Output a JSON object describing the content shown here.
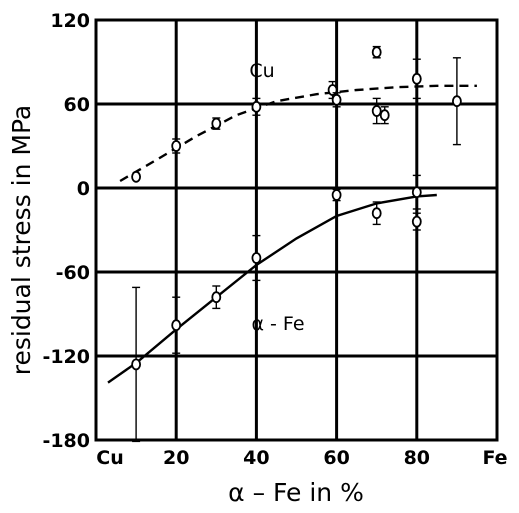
{
  "chart_data": {
    "type": "scatter",
    "xlabel": "α – Fe in %",
    "ylabel": "residual stress in MPa",
    "xlim": [
      0,
      100
    ],
    "ylim": [
      -180,
      120
    ],
    "x_ticks": [
      20,
      40,
      60,
      80
    ],
    "x_tick_labels": [
      "20",
      "40",
      "60",
      "80"
    ],
    "x_end_labels": {
      "left": "Cu",
      "right": "Fe"
    },
    "y_ticks": [
      120,
      60,
      0,
      -60,
      -120,
      -180
    ],
    "y_tick_labels": [
      "120",
      "60",
      "0",
      "-60",
      "-120",
      "-180"
    ],
    "grid": true,
    "series": [
      {
        "name": "Cu",
        "marker": "open-circle",
        "trend_style": "dashed",
        "points": [
          {
            "x": 10,
            "y": 8,
            "err": 0
          },
          {
            "x": 20,
            "y": 30,
            "err": 5
          },
          {
            "x": 30,
            "y": 46,
            "err": 4
          },
          {
            "x": 40,
            "y": 58,
            "err": 6
          },
          {
            "x": 59,
            "y": 70,
            "err": 6
          },
          {
            "x": 60,
            "y": 63,
            "err": 5
          },
          {
            "x": 70,
            "y": 97,
            "err": 4
          },
          {
            "x": 70,
            "y": 55,
            "err": 9
          },
          {
            "x": 72,
            "y": 52,
            "err": 6
          },
          {
            "x": 80,
            "y": 78,
            "err": 14
          },
          {
            "x": 90,
            "y": 62,
            "err": 31
          }
        ],
        "trend": [
          [
            6,
            5
          ],
          [
            15,
            20
          ],
          [
            25,
            37
          ],
          [
            35,
            52
          ],
          [
            45,
            62
          ],
          [
            55,
            67
          ],
          [
            65,
            70
          ],
          [
            75,
            72
          ],
          [
            85,
            73
          ],
          [
            95,
            73
          ]
        ]
      },
      {
        "name": "α - Fe",
        "marker": "open-circle",
        "trend_style": "solid",
        "points": [
          {
            "x": 10,
            "y": -126,
            "err": 55
          },
          {
            "x": 20,
            "y": -98,
            "err": 20
          },
          {
            "x": 30,
            "y": -78,
            "err": 8
          },
          {
            "x": 40,
            "y": -50,
            "err": 16
          },
          {
            "x": 60,
            "y": -5,
            "err": 4
          },
          {
            "x": 70,
            "y": -18,
            "err": 8
          },
          {
            "x": 80,
            "y": -3,
            "err": 12
          },
          {
            "x": 80,
            "y": -24,
            "err": 6
          }
        ],
        "trend": [
          [
            3,
            -139
          ],
          [
            10,
            -125
          ],
          [
            20,
            -101
          ],
          [
            30,
            -78
          ],
          [
            40,
            -55
          ],
          [
            50,
            -36
          ],
          [
            60,
            -20
          ],
          [
            70,
            -11
          ],
          [
            80,
            -6
          ],
          [
            85,
            -5
          ]
        ]
      }
    ]
  }
}
